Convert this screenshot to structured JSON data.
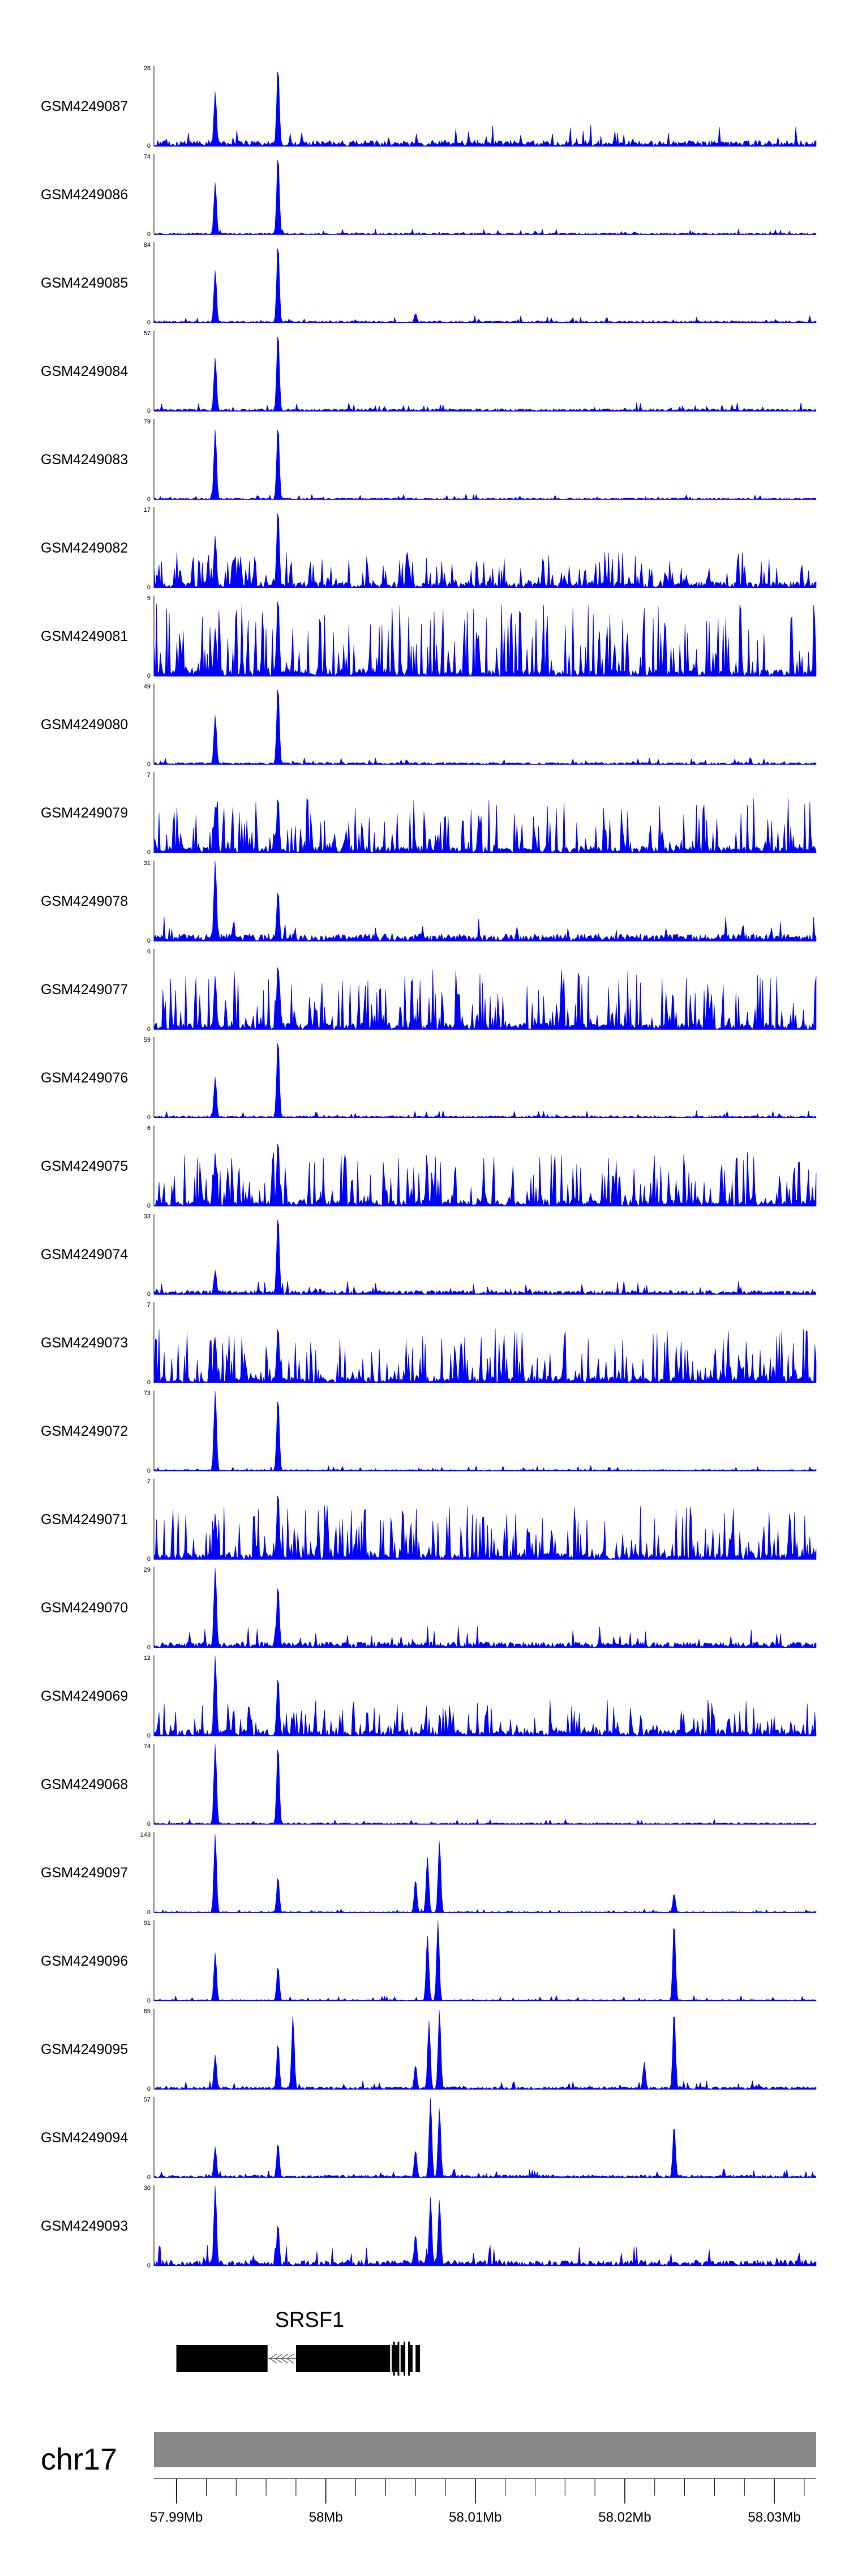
{
  "chart_data": {
    "type": "area",
    "title": "",
    "chromosome": "chr17",
    "x_unit": "Mb",
    "xlim": [
      57.9885,
      58.0328
    ],
    "x_ticks": [
      57.99,
      58.0,
      58.01,
      58.02,
      58.03
    ],
    "x_tick_labels": [
      "57.99Mb",
      "58Mb",
      "58.01Mb",
      "58.02Mb",
      "58.03Mb"
    ],
    "fill_color": "#0000ff",
    "series": [
      {
        "name": "GSM4249087",
        "ymax_label": "28",
        "ymin_label": "0",
        "ylim": [
          0,
          28
        ],
        "peaks": [
          [
            57.9926,
            19
          ],
          [
            57.9968,
            28
          ]
        ],
        "background_level": 0.12,
        "noise_seed": 1
      },
      {
        "name": "GSM4249086",
        "ymax_label": "74",
        "ymin_label": "0",
        "ylim": [
          0,
          74
        ],
        "peaks": [
          [
            57.9926,
            48
          ],
          [
            57.9968,
            74
          ]
        ],
        "background_level": 0.03,
        "noise_seed": 2
      },
      {
        "name": "GSM4249085",
        "ymax_label": "84",
        "ymin_label": "0",
        "ylim": [
          0,
          84
        ],
        "peaks": [
          [
            57.9926,
            55
          ],
          [
            57.9968,
            84
          ],
          [
            58.006,
            10
          ]
        ],
        "background_level": 0.04,
        "noise_seed": 3
      },
      {
        "name": "GSM4249084",
        "ymax_label": "57",
        "ymin_label": "0",
        "ylim": [
          0,
          57
        ],
        "peaks": [
          [
            57.9926,
            38
          ],
          [
            57.9968,
            57
          ]
        ],
        "background_level": 0.05,
        "noise_seed": 4
      },
      {
        "name": "GSM4249083",
        "ymax_label": "79",
        "ymin_label": "0",
        "ylim": [
          0,
          79
        ],
        "peaks": [
          [
            57.9926,
            69
          ],
          [
            57.9968,
            74
          ]
        ],
        "background_level": 0.03,
        "noise_seed": 5
      },
      {
        "name": "GSM4249082",
        "ymax_label": "17",
        "ymin_label": "0",
        "ylim": [
          0,
          17
        ],
        "peaks": [
          [
            57.9926,
            11
          ],
          [
            57.9968,
            17
          ]
        ],
        "background_level": 0.3,
        "noise_seed": 6
      },
      {
        "name": "GSM4249081",
        "ymax_label": "5",
        "ymin_label": "0",
        "ylim": [
          0,
          5
        ],
        "peaks": [
          [
            57.9926,
            3
          ],
          [
            57.9968,
            5
          ]
        ],
        "background_level": 0.6,
        "noise_seed": 7
      },
      {
        "name": "GSM4249080",
        "ymax_label": "49",
        "ymin_label": "0",
        "ylim": [
          0,
          49
        ],
        "peaks": [
          [
            57.9926,
            30
          ],
          [
            57.9968,
            49
          ]
        ],
        "background_level": 0.04,
        "noise_seed": 8
      },
      {
        "name": "GSM4249079",
        "ymax_label": "7",
        "ymin_label": "0",
        "ylim": [
          0,
          7
        ],
        "peaks": [
          [
            57.9926,
            4
          ],
          [
            57.9968,
            5
          ]
        ],
        "background_level": 0.45,
        "noise_seed": 9
      },
      {
        "name": "GSM4249078",
        "ymax_label": "31",
        "ymin_label": "0",
        "ylim": [
          0,
          31
        ],
        "peaks": [
          [
            57.9926,
            31
          ],
          [
            57.9968,
            20
          ]
        ],
        "background_level": 0.15,
        "noise_seed": 10
      },
      {
        "name": "GSM4249077",
        "ymax_label": "6",
        "ymin_label": "0",
        "ylim": [
          0,
          6
        ],
        "peaks": [
          [
            57.9926,
            4
          ],
          [
            57.9968,
            5
          ]
        ],
        "background_level": 0.5,
        "noise_seed": 11
      },
      {
        "name": "GSM4249076",
        "ymax_label": "59",
        "ymin_label": "0",
        "ylim": [
          0,
          59
        ],
        "peaks": [
          [
            57.9926,
            30
          ],
          [
            57.9968,
            59
          ]
        ],
        "background_level": 0.04,
        "noise_seed": 12
      },
      {
        "name": "GSM4249075",
        "ymax_label": "6",
        "ymin_label": "0",
        "ylim": [
          0,
          6
        ],
        "peaks": [
          [
            57.9926,
            4
          ],
          [
            57.9968,
            5
          ]
        ],
        "background_level": 0.45,
        "noise_seed": 13
      },
      {
        "name": "GSM4249074",
        "ymax_label": "33",
        "ymin_label": "0",
        "ylim": [
          0,
          33
        ],
        "peaks": [
          [
            57.9926,
            10
          ],
          [
            57.9968,
            33
          ]
        ],
        "background_level": 0.08,
        "noise_seed": 14
      },
      {
        "name": "GSM4249073",
        "ymax_label": "7",
        "ymin_label": "0",
        "ylim": [
          0,
          7
        ],
        "peaks": [
          [
            57.9926,
            4
          ],
          [
            57.9968,
            5
          ]
        ],
        "background_level": 0.45,
        "noise_seed": 15
      },
      {
        "name": "GSM4249072",
        "ymax_label": "73",
        "ymin_label": "0",
        "ylim": [
          0,
          73
        ],
        "peaks": [
          [
            57.9926,
            73
          ],
          [
            57.9968,
            68
          ]
        ],
        "background_level": 0.03,
        "noise_seed": 16
      },
      {
        "name": "GSM4249071",
        "ymax_label": "7",
        "ymin_label": "0",
        "ylim": [
          0,
          7
        ],
        "peaks": [
          [
            57.9926,
            4
          ],
          [
            57.9968,
            6
          ]
        ],
        "background_level": 0.45,
        "noise_seed": 17
      },
      {
        "name": "GSM4249070",
        "ymax_label": "29",
        "ymin_label": "0",
        "ylim": [
          0,
          29
        ],
        "peaks": [
          [
            57.9926,
            29
          ],
          [
            57.9968,
            23
          ]
        ],
        "background_level": 0.12,
        "noise_seed": 18
      },
      {
        "name": "GSM4249069",
        "ymax_label": "12",
        "ymin_label": "0",
        "ylim": [
          0,
          12
        ],
        "peaks": [
          [
            57.9926,
            12
          ],
          [
            57.9968,
            9
          ]
        ],
        "background_level": 0.3,
        "noise_seed": 19
      },
      {
        "name": "GSM4249068",
        "ymax_label": "74",
        "ymin_label": "0",
        "ylim": [
          0,
          74
        ],
        "peaks": [
          [
            57.9926,
            74
          ],
          [
            57.9968,
            74
          ]
        ],
        "background_level": 0.03,
        "noise_seed": 20
      },
      {
        "name": "GSM4249097",
        "ymax_label": "143",
        "ymin_label": "0",
        "ylim": [
          0,
          143
        ],
        "peaks": [
          [
            57.9926,
            140
          ],
          [
            57.9968,
            65
          ],
          [
            58.006,
            60
          ],
          [
            58.0068,
            100
          ],
          [
            58.0076,
            130
          ],
          [
            58.0233,
            35
          ]
        ],
        "background_level": 0.02,
        "noise_seed": 21
      },
      {
        "name": "GSM4249096",
        "ymax_label": "91",
        "ymin_label": "0",
        "ylim": [
          0,
          91
        ],
        "peaks": [
          [
            57.9926,
            55
          ],
          [
            57.9968,
            40
          ],
          [
            58.0068,
            75
          ],
          [
            58.0075,
            91
          ],
          [
            58.0233,
            91
          ]
        ],
        "background_level": 0.03,
        "noise_seed": 22
      },
      {
        "name": "GSM4249095",
        "ymax_label": "65",
        "ymin_label": "0",
        "ylim": [
          0,
          65
        ],
        "peaks": [
          [
            57.9926,
            28
          ],
          [
            57.9968,
            38
          ],
          [
            57.9978,
            60
          ],
          [
            58.006,
            20
          ],
          [
            58.0069,
            55
          ],
          [
            58.0076,
            65
          ],
          [
            58.0213,
            22
          ],
          [
            58.0233,
            65
          ]
        ],
        "background_level": 0.05,
        "noise_seed": 23
      },
      {
        "name": "GSM4249094",
        "ymax_label": "57",
        "ymin_label": "0",
        "ylim": [
          0,
          57
        ],
        "peaks": [
          [
            57.9926,
            22
          ],
          [
            57.9968,
            25
          ],
          [
            58.006,
            20
          ],
          [
            58.007,
            57
          ],
          [
            58.0076,
            50
          ],
          [
            58.0233,
            38
          ]
        ],
        "background_level": 0.05,
        "noise_seed": 24
      },
      {
        "name": "GSM4249093",
        "ymax_label": "30",
        "ymin_label": "0",
        "ylim": [
          0,
          30
        ],
        "peaks": [
          [
            57.9926,
            30
          ],
          [
            57.9968,
            16
          ],
          [
            58.006,
            12
          ],
          [
            58.007,
            26
          ],
          [
            58.0076,
            25
          ]
        ],
        "background_level": 0.12,
        "noise_seed": 25
      }
    ],
    "gene": {
      "name": "SRSF1",
      "strand": "-",
      "exons": [
        [
          57.99,
          57.9961
        ],
        [
          57.998,
          58.0043
        ],
        [
          58.0044,
          58.0048
        ],
        [
          58.005,
          58.0053
        ],
        [
          58.0055,
          58.0058
        ],
        [
          58.006,
          58.0063
        ]
      ],
      "intron": [
        57.9961,
        57.998
      ]
    }
  }
}
